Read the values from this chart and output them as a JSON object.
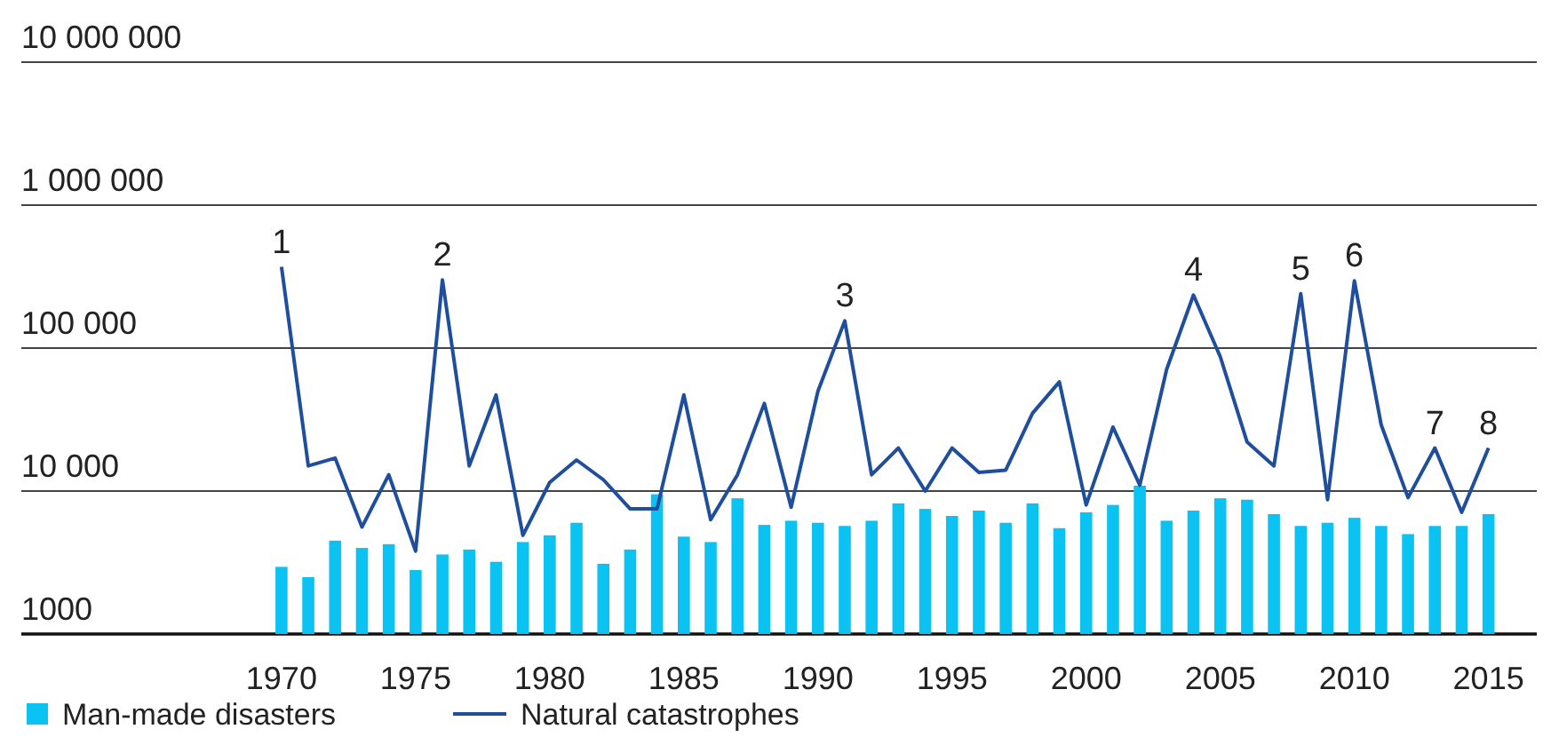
{
  "chart_data": {
    "type": "bar",
    "x": [
      1970,
      1971,
      1972,
      1973,
      1974,
      1975,
      1976,
      1977,
      1978,
      1979,
      1980,
      1981,
      1982,
      1983,
      1984,
      1985,
      1986,
      1987,
      1988,
      1989,
      1990,
      1991,
      1992,
      1993,
      1994,
      1995,
      1996,
      1997,
      1998,
      1999,
      2000,
      2001,
      2002,
      2003,
      2004,
      2005,
      2006,
      2007,
      2008,
      2009,
      2010,
      2011,
      2012,
      2013,
      2014,
      2015
    ],
    "series": [
      {
        "name": "Man-made disasters",
        "color": "#0bc3f3",
        "values": [
          2950,
          2500,
          4500,
          4000,
          4250,
          2800,
          3600,
          3900,
          3200,
          4400,
          4900,
          6000,
          3100,
          3900,
          9500,
          4800,
          4400,
          8900,
          5800,
          6200,
          6000,
          5700,
          6200,
          8200,
          7500,
          6700,
          7300,
          6000,
          8200,
          5500,
          7100,
          8000,
          10900,
          6200,
          7300,
          8900,
          8700,
          6900,
          5700,
          6000,
          6500,
          5700,
          5000,
          5700,
          5700,
          6900
        ]
      },
      {
        "name": "Natural catastrophes",
        "type": "line",
        "color": "#1f4e9c",
        "values": [
          370000,
          15000,
          17000,
          5600,
          13000,
          3800,
          300000,
          15000,
          47000,
          4900,
          11500,
          16500,
          12000,
          7500,
          7500,
          47000,
          6300,
          13000,
          41000,
          7700,
          50000,
          155000,
          13000,
          20000,
          10000,
          20000,
          13500,
          14000,
          35000,
          58000,
          8000,
          28000,
          11000,
          71000,
          235000,
          87000,
          22000,
          15000,
          240000,
          8700,
          295000,
          29000,
          9000,
          20000,
          7100,
          20000
        ]
      }
    ],
    "log": "y",
    "xlim": [
      1960.3,
      2016.8
    ],
    "xticks": [
      1970,
      1975,
      1980,
      1985,
      1990,
      1995,
      2000,
      2005,
      2010,
      2015
    ],
    "ylim": [
      1000,
      10000000
    ],
    "yticks": [
      {
        "value": 1000,
        "label": "1000"
      },
      {
        "value": 10000,
        "label": "10 000"
      },
      {
        "value": 100000,
        "label": "100 000"
      },
      {
        "value": 1000000,
        "label": "1 000 000"
      },
      {
        "value": 10000000,
        "label": "10 000 000"
      }
    ],
    "grid": "y",
    "legend": "bottom left",
    "annotations": [
      {
        "text": "1",
        "x": 1970,
        "y": 370000
      },
      {
        "text": "2",
        "x": 1976,
        "y": 300000
      },
      {
        "text": "3",
        "x": 1991,
        "y": 155000
      },
      {
        "text": "4",
        "x": 2004,
        "y": 235000
      },
      {
        "text": "5",
        "x": 2008,
        "y": 240000
      },
      {
        "text": "6",
        "x": 2010,
        "y": 295000
      },
      {
        "text": "7",
        "x": 2013,
        "y": 20000
      },
      {
        "text": "8",
        "x": 2015,
        "y": 20000
      }
    ]
  }
}
